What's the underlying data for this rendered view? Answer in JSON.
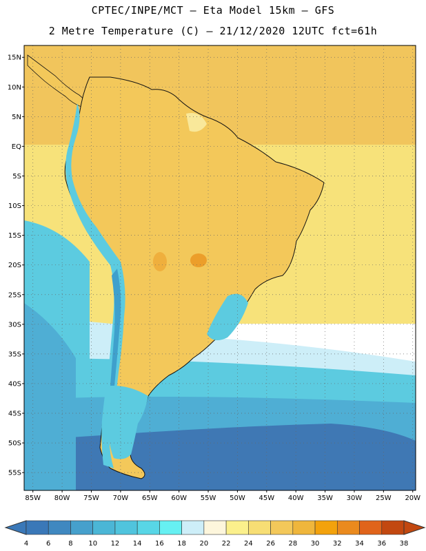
{
  "header": {
    "line1": "CPTEC/INPE/MCT –  Eta Model 15km – GFS",
    "line2": "2 Metre Temperature (C) – 21/12/2020 12UTC fct=61h"
  },
  "map": {
    "lat_labels": [
      "15N",
      "10N",
      "5N",
      "EQ",
      "5S",
      "10S",
      "15S",
      "20S",
      "25S",
      "30S",
      "35S",
      "40S",
      "45S",
      "50S",
      "55S"
    ],
    "lon_labels": [
      "85W",
      "80W",
      "75W",
      "70W",
      "65W",
      "60W",
      "55W",
      "50W",
      "45W",
      "40W",
      "35W",
      "30W",
      "25W",
      "20W"
    ],
    "extent": {
      "lon_min": -86.5,
      "lon_max": -19.5,
      "lat_min": -58,
      "lat_max": 17
    }
  },
  "colorbar": {
    "values": [
      "4",
      "6",
      "8",
      "10",
      "12",
      "14",
      "16",
      "18",
      "20",
      "22",
      "24",
      "26",
      "28",
      "30",
      "32",
      "34",
      "36",
      "38"
    ],
    "colors": [
      "#3a78b8",
      "#3f88c0",
      "#46a0cc",
      "#4bb6d6",
      "#50c4dd",
      "#58d6e6",
      "#66f0f2",
      "#cdeef8",
      "#fdf6dc",
      "#fbf08c",
      "#f7de74",
      "#f3c85a",
      "#efb63c",
      "#f3a20c",
      "#ea8a1e",
      "#e0641a",
      "#c24810"
    ],
    "low_color": "#3a78b8",
    "high_color": "#c24810"
  },
  "palette": {
    "ocean_deep": "#3f78b4",
    "ocean_mid": "#4faed4",
    "ocean_cool": "#5ccbe0",
    "ocean_mild": "#cdeef8",
    "ocean_warm": "#f7e27a",
    "ocean_hot": "#f1c55c",
    "land_warm": "#f3c85a",
    "land_hot": "#ec9e2a",
    "land_mild": "#f9e89a",
    "andes": "#5ccbe0",
    "andes_high": "#3fa0cc",
    "outline": "#111111"
  }
}
